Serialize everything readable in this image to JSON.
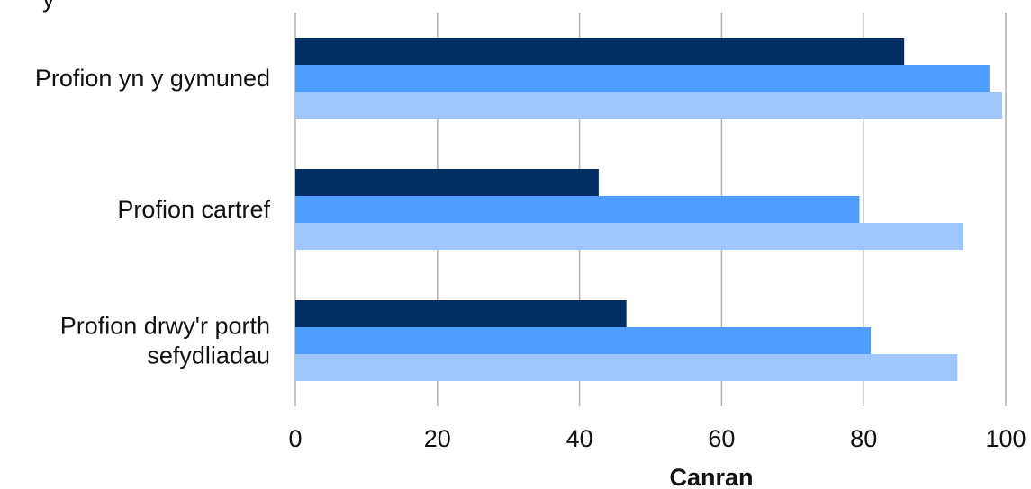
{
  "chart_data": {
    "type": "bar",
    "orientation": "horizontal",
    "title_fragment": "y",
    "categories": [
      "Profion yn y gymuned",
      "Profion cartref",
      "Profion drwy'r porth sefydliadau"
    ],
    "category_label_lines": [
      [
        "Profion yn y gymuned"
      ],
      [
        "Profion cartref"
      ],
      [
        "Profion drwy'r porth",
        "sefydliadau"
      ]
    ],
    "series": [
      {
        "values": [
          85.7,
          42.7,
          46.6
        ],
        "color": "#002d62"
      },
      {
        "values": [
          97.7,
          79.4,
          81.0
        ],
        "color": "#4f9eff"
      },
      {
        "values": [
          99.5,
          94.0,
          93.2
        ],
        "color": "#9fc7ff"
      }
    ],
    "xlabel": "Canran",
    "xlim": [
      0,
      100
    ],
    "x_ticks": [
      0,
      20,
      40,
      60,
      80,
      100
    ],
    "x_tick_labels": [
      "0",
      "20",
      "40",
      "60",
      "80",
      "100"
    ],
    "grid": true,
    "grid_color": "#b3b3b3"
  }
}
